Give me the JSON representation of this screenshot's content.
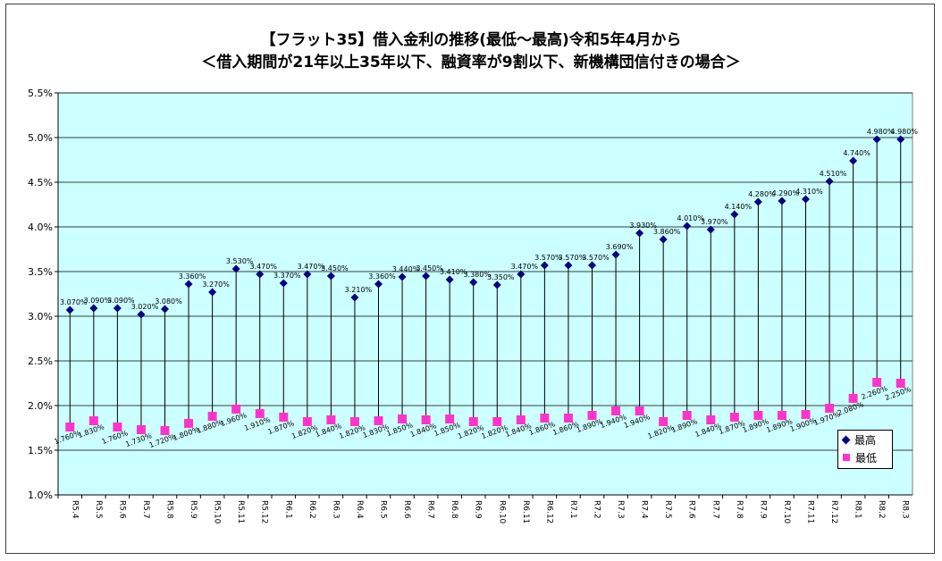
{
  "chart_data": {
    "type": "line",
    "title": "【フラット35】借入金利の推移(最低～最高)令和5年4月から",
    "subtitle": "＜借入期間が21年以上35年以下、融資率が9割以下、新機構団信付きの場合＞",
    "ylim": [
      1.0,
      5.5
    ],
    "yticks": [
      "1.0%",
      "1.5%",
      "2.0%",
      "2.5%",
      "3.0%",
      "3.5%",
      "4.0%",
      "4.5%",
      "5.0%",
      "5.5%"
    ],
    "grid": true,
    "legend_position": "bottom-right",
    "categories": [
      "R5.4",
      "R5.5",
      "R5.6",
      "R5.7",
      "R5.8",
      "R5.9",
      "R5.10",
      "R5.11",
      "R5.12",
      "R6.1",
      "R6.2",
      "R6.3",
      "R6.4",
      "R6.5",
      "R6.6",
      "R6.7",
      "R6.8",
      "R6.9",
      "R6.10",
      "R6.11",
      "R6.12",
      "R7.1",
      "R7.2",
      "R7.3",
      "R7.4",
      "R7.5",
      "R7.6",
      "R7.7",
      "R7.8",
      "R7.9",
      "R7.10",
      "R7.11",
      "R7.12",
      "R8.1",
      "R8.2",
      "R8.3"
    ],
    "series": [
      {
        "name": "最高",
        "color": "#000080",
        "marker": "diamond",
        "values": [
          3.07,
          3.09,
          3.09,
          3.02,
          3.08,
          3.36,
          3.27,
          3.53,
          3.47,
          3.37,
          3.47,
          3.45,
          3.21,
          3.36,
          3.44,
          3.45,
          3.41,
          3.38,
          3.35,
          3.47,
          3.57,
          3.57,
          3.57,
          3.69,
          3.93,
          3.86,
          4.01,
          3.97,
          4.14,
          4.28,
          4.29,
          4.31,
          4.51,
          4.74,
          4.98,
          4.98
        ],
        "labels": [
          "3.070%",
          "3.090%",
          "3.090%",
          "3.020%",
          "3.080%",
          "3.360%",
          "3.270%",
          "3.530%",
          "3.470%",
          "3.370%",
          "3.470%",
          "3.450%",
          "3.210%",
          "3.360%",
          "3.440%",
          "3.450%",
          "3.410%",
          "3.380%",
          "3.350%",
          "3.470%",
          "3.570%",
          "3.570%",
          "3.570%",
          "3.690%",
          "3.930%",
          "3.860%",
          "4.010%",
          "3.970%",
          "4.140%",
          "4.280%",
          "4.290%",
          "4.310%",
          "4.510%",
          "4.740%",
          "4.980%",
          "4.980%"
        ]
      },
      {
        "name": "最低",
        "color": "#ff33cc",
        "marker": "square",
        "values": [
          1.76,
          1.83,
          1.76,
          1.73,
          1.72,
          1.8,
          1.88,
          1.96,
          1.91,
          1.87,
          1.82,
          1.84,
          1.82,
          1.83,
          1.85,
          1.84,
          1.85,
          1.82,
          1.82,
          1.84,
          1.86,
          1.86,
          1.89,
          1.94,
          1.94,
          1.82,
          1.89,
          1.84,
          1.87,
          1.89,
          1.89,
          1.9,
          1.97,
          2.08,
          2.26,
          2.25
        ],
        "labels": [
          "1.760%",
          "1.830%",
          "1.760%",
          "1.730%",
          "1.720%",
          "1.800%",
          "1.880%",
          "1.960%",
          "1.910%",
          "1.870%",
          "1.820%",
          "1.840%",
          "1.820%",
          "1.830%",
          "1.850%",
          "1.840%",
          "1.850%",
          "1.820%",
          "1.820%",
          "1.840%",
          "1.860%",
          "1.860%",
          "1.890%",
          "1.940%",
          "1.940%",
          "1.820%",
          "1.890%",
          "1.840%",
          "1.870%",
          "1.890%",
          "1.890%",
          "1.900%",
          "1.970%",
          "2.080%",
          "2.260%",
          "2.250%"
        ]
      }
    ]
  }
}
